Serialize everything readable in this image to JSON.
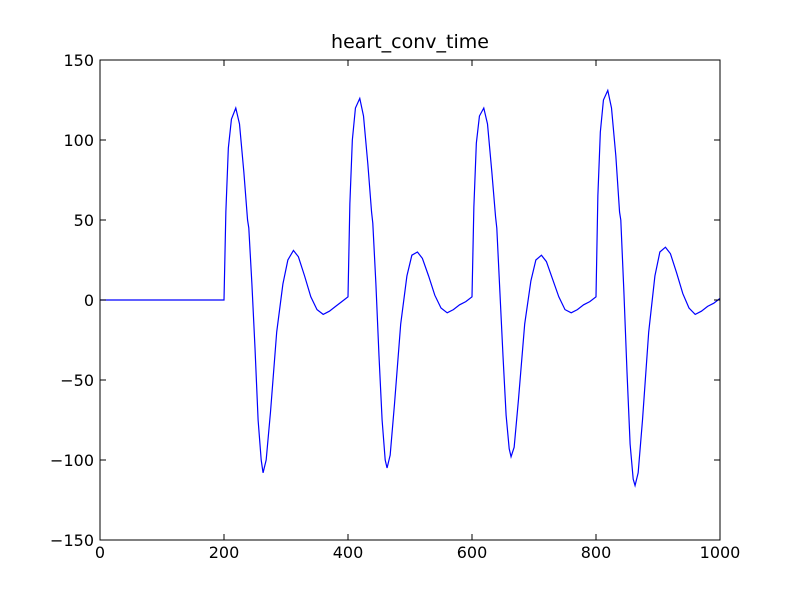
{
  "chart_data": {
    "type": "line",
    "title": "heart_conv_time",
    "color": "#0000ff",
    "x": [
      0,
      200,
      203,
      207,
      212,
      219,
      225,
      232,
      238,
      240,
      245,
      250,
      255,
      260,
      263,
      268,
      275,
      285,
      295,
      303,
      312,
      320,
      330,
      340,
      350,
      360,
      370,
      380,
      390,
      400,
      403,
      407,
      412,
      419,
      425,
      432,
      438,
      440,
      445,
      450,
      455,
      460,
      463,
      468,
      475,
      485,
      495,
      503,
      512,
      520,
      530,
      540,
      550,
      560,
      570,
      580,
      590,
      600,
      603,
      607,
      612,
      619,
      625,
      632,
      638,
      640,
      645,
      650,
      655,
      660,
      663,
      668,
      675,
      685,
      695,
      703,
      712,
      720,
      730,
      740,
      750,
      760,
      770,
      780,
      790,
      800,
      803,
      807,
      812,
      819,
      825,
      832,
      838,
      840,
      845,
      850,
      855,
      860,
      863,
      868,
      875,
      885,
      895,
      903,
      912,
      920,
      930,
      940,
      950,
      960,
      970,
      980,
      990,
      1000
    ],
    "values": [
      0,
      0,
      55,
      95,
      113,
      120,
      110,
      80,
      50,
      45,
      10,
      -30,
      -75,
      -100,
      -108,
      -100,
      -70,
      -20,
      10,
      25,
      31,
      27,
      15,
      2,
      -6,
      -9,
      -7,
      -4,
      -1,
      2,
      60,
      100,
      120,
      126,
      115,
      85,
      55,
      48,
      10,
      -35,
      -75,
      -100,
      -105,
      -97,
      -65,
      -15,
      15,
      28,
      30,
      26,
      15,
      3,
      -5,
      -8,
      -6,
      -3,
      -1,
      2,
      58,
      98,
      115,
      120,
      110,
      80,
      52,
      45,
      5,
      -35,
      -72,
      -93,
      -98,
      -92,
      -62,
      -15,
      12,
      25,
      28,
      24,
      13,
      2,
      -6,
      -8,
      -6,
      -3,
      -1,
      2,
      65,
      105,
      125,
      131,
      120,
      90,
      55,
      50,
      5,
      -45,
      -90,
      -112,
      -116,
      -108,
      -75,
      -20,
      15,
      30,
      33,
      29,
      17,
      4,
      -5,
      -9,
      -7,
      -4,
      -2,
      1
    ],
    "xlim": [
      0,
      1000
    ],
    "xticks": [
      0,
      200,
      400,
      600,
      800,
      1000
    ],
    "ylim": [
      -150,
      150
    ],
    "yticks": [
      {
        "value": -150,
        "label": "−150"
      },
      {
        "value": -100,
        "label": "−100"
      },
      {
        "value": -50,
        "label": "−50"
      },
      0,
      50,
      100,
      150
    ],
    "grid": false
  }
}
